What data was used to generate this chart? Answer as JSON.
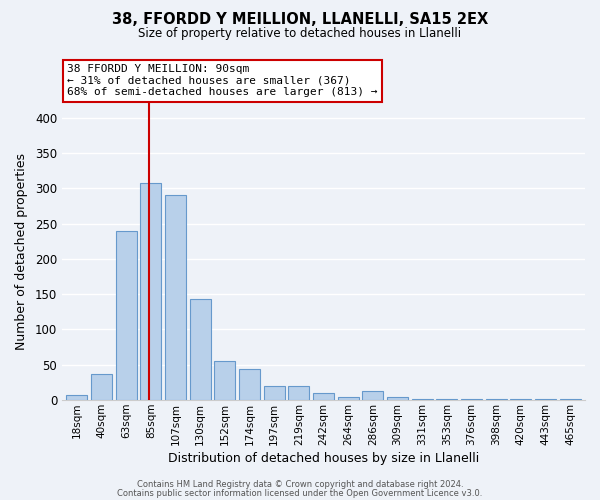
{
  "title": "38, FFORDD Y MEILLION, LLANELLI, SA15 2EX",
  "subtitle": "Size of property relative to detached houses in Llanelli",
  "xlabel": "Distribution of detached houses by size in Llanelli",
  "ylabel": "Number of detached properties",
  "bar_labels": [
    "18sqm",
    "40sqm",
    "63sqm",
    "85sqm",
    "107sqm",
    "130sqm",
    "152sqm",
    "174sqm",
    "197sqm",
    "219sqm",
    "242sqm",
    "264sqm",
    "286sqm",
    "309sqm",
    "331sqm",
    "353sqm",
    "376sqm",
    "398sqm",
    "420sqm",
    "443sqm",
    "465sqm"
  ],
  "bar_heights": [
    8,
    37,
    240,
    308,
    290,
    143,
    55,
    44,
    20,
    20,
    10,
    5,
    13,
    5,
    2,
    2,
    1,
    1,
    1,
    1,
    1
  ],
  "bar_color": "#b8d0ea",
  "bar_edge_color": "#6699cc",
  "vline_x_index": 3,
  "vline_color": "#cc0000",
  "annotation_title": "38 FFORDD Y MEILLION: 90sqm",
  "annotation_line1": "← 31% of detached houses are smaller (367)",
  "annotation_line2": "68% of semi-detached houses are larger (813) →",
  "annotation_box_edgecolor": "#cc0000",
  "ylim": [
    0,
    420
  ],
  "yticks": [
    0,
    50,
    100,
    150,
    200,
    250,
    300,
    350,
    400
  ],
  "footer1": "Contains HM Land Registry data © Crown copyright and database right 2024.",
  "footer2": "Contains public sector information licensed under the Open Government Licence v3.0.",
  "bg_color": "#eef2f8"
}
